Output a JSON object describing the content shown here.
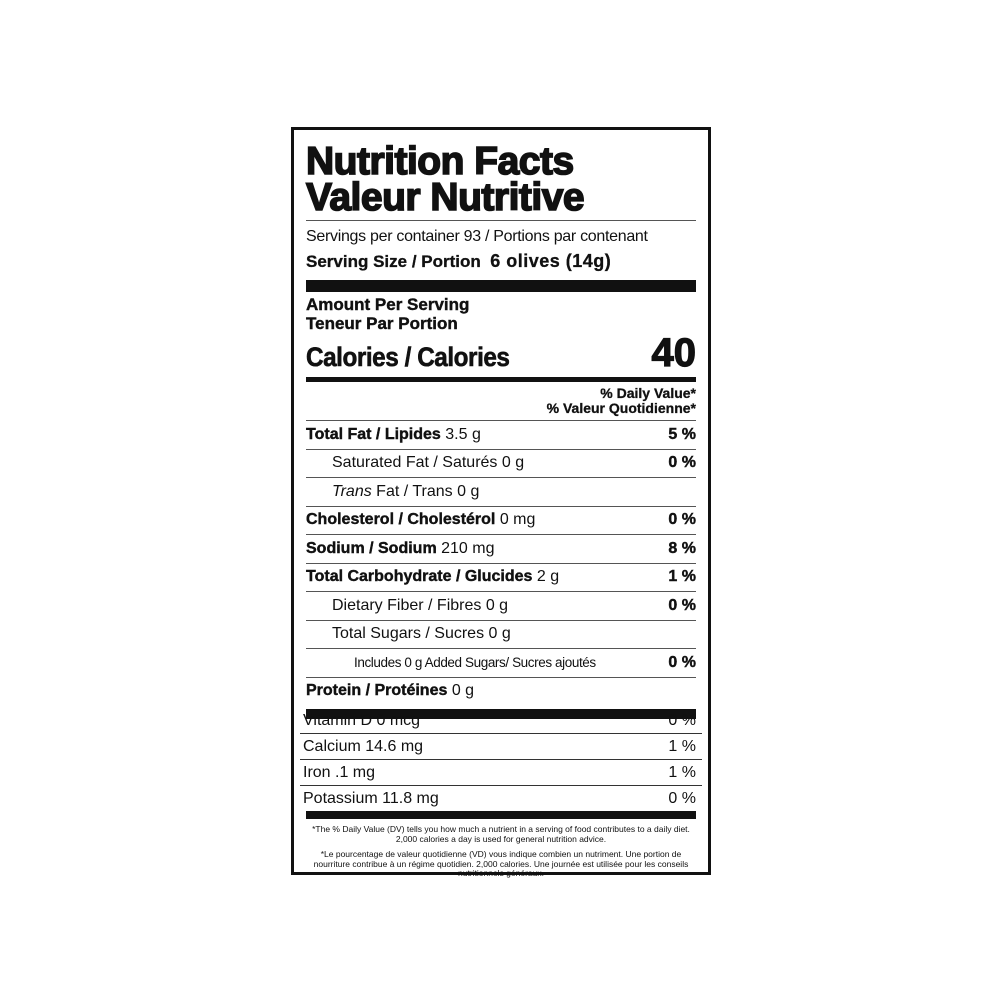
{
  "title_en": "Nutrition Facts",
  "title_fr": "Valeur Nutritive",
  "servings": "Servings per container 93 / Portions par contenant",
  "serving_size_label": "Serving Size / Portion",
  "serving_size_value": "6 olives (14g)",
  "amount_en": "Amount Per Serving",
  "amount_fr": "Teneur Par Portion",
  "calories_label": "Calories / Calories",
  "calories_value": "40",
  "dv_en": "% Daily Value*",
  "dv_fr": "% Valeur Quotidienne*",
  "nutrients": [
    {
      "label": "Total Fat / Lipides",
      "amount": "3.5 g",
      "pct": "5 %",
      "bold": true,
      "indent": 0
    },
    {
      "label": "Saturated Fat / Saturés",
      "amount": "0 g",
      "pct": "0 %",
      "bold": false,
      "indent": 1
    },
    {
      "label": "Trans Fat / Trans",
      "amount": "0 g",
      "pct": "",
      "bold": false,
      "indent": 1
    },
    {
      "label": "Cholesterol / Cholestérol",
      "amount": "0 mg",
      "pct": "0 %",
      "bold": true,
      "indent": 0
    },
    {
      "label": "Sodium / Sodium",
      "amount": "210 mg",
      "pct": "8 %",
      "bold": true,
      "indent": 0
    },
    {
      "label": "Total Carbohydrate / Glucides",
      "amount": "2 g",
      "pct": "1 %",
      "bold": true,
      "indent": 0
    },
    {
      "label": "Dietary Fiber / Fibres",
      "amount": "0 g",
      "pct": "0 %",
      "bold": false,
      "indent": 1
    },
    {
      "label": "Total Sugars / Sucres",
      "amount": "0 g",
      "pct": "",
      "bold": false,
      "indent": 1
    },
    {
      "label": "Includes 0 g Added Sugars/ Sucres ajoutés",
      "amount": "",
      "pct": "0 %",
      "bold": false,
      "indent": 2
    },
    {
      "label": "Protein / Protéines",
      "amount": "0 g",
      "pct": "",
      "bold": true,
      "indent": 0
    }
  ],
  "vitamins": [
    {
      "label": "Vitamin D 0 mcg",
      "pct": "0 %"
    },
    {
      "label": "Calcium 14.6 mg",
      "pct": "1 %"
    },
    {
      "label": "Iron .1 mg",
      "pct": "1 %"
    },
    {
      "label": "Potassium 11.8 mg",
      "pct": "0 %"
    }
  ],
  "footnote_en": "*The % Daily Value (DV) tells you how much a nutrient in a serving of food contributes to a daily diet. 2,000 calories a day is used for general nutrition advice.",
  "footnote_fr": "*Le pourcentage de valeur quotidienne (VD) vous indique combien un nutriment. Une portion de nourriture contribue à un régime quotidien. 2,000 calories. Une journée est utilisée pour les conseils nutritionnels généraux."
}
